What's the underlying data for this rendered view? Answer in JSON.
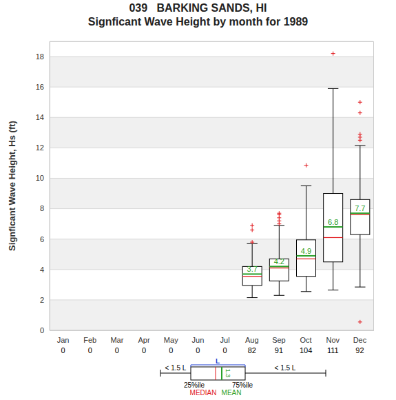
{
  "chart_data": {
    "type": "box",
    "title": "039   BARKING SANDS, HI",
    "subtitle": "Signficant Wave Height by month for 1989",
    "y_label": "Signficant Wave Height, Hs (ft)",
    "categories": [
      "Jan",
      "Feb",
      "Mar",
      "Apr",
      "May",
      "Jun",
      "Jul",
      "Aug",
      "Sep",
      "Oct",
      "Nov",
      "Dec"
    ],
    "counts": [
      0,
      0,
      0,
      0,
      0,
      0,
      0,
      82,
      91,
      104,
      111,
      92
    ],
    "whisker_low": [
      null,
      null,
      null,
      null,
      null,
      null,
      null,
      2.15,
      2.3,
      2.55,
      2.65,
      2.85
    ],
    "q1": [
      null,
      null,
      null,
      null,
      null,
      null,
      null,
      2.95,
      3.25,
      3.55,
      4.5,
      6.3
    ],
    "median": [
      null,
      null,
      null,
      null,
      null,
      null,
      null,
      3.55,
      4.1,
      4.7,
      6.1,
      7.6
    ],
    "mean": [
      null,
      null,
      null,
      null,
      null,
      null,
      null,
      3.7,
      4.2,
      4.9,
      6.8,
      7.7
    ],
    "q3": [
      null,
      null,
      null,
      null,
      null,
      null,
      null,
      4.2,
      4.7,
      5.95,
      9.0,
      8.6
    ],
    "whisker_high": [
      null,
      null,
      null,
      null,
      null,
      null,
      null,
      5.7,
      6.9,
      9.5,
      15.9,
      12.15
    ],
    "outliers": [
      [],
      [],
      [],
      [],
      [],
      [],
      [],
      [
        5.8,
        6.6,
        6.9
      ],
      [
        7.0,
        7.2,
        7.4,
        7.6,
        7.7
      ],
      [
        10.85
      ],
      [
        18.2
      ],
      [
        0.55,
        12.5,
        12.7,
        12.9,
        14.3,
        15.0
      ]
    ],
    "ylim": [
      0,
      19
    ],
    "yticks": [
      0,
      2,
      4,
      6,
      8,
      10,
      12,
      14,
      16,
      18
    ],
    "grid": true,
    "data_labels": true,
    "legend_key": {
      "left": "< 1.5 L",
      "top": "L",
      "right": "< 1.5 L",
      "q1": "25%ile",
      "q3": "75%ile",
      "median": "MEDIAN",
      "mean": "MEAN",
      "mean_value": "1.3"
    }
  }
}
